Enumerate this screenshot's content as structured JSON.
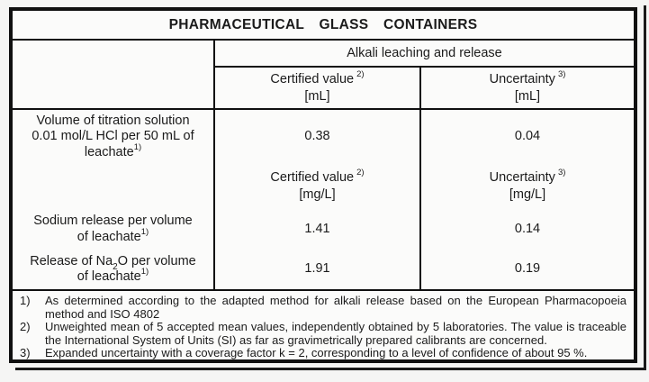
{
  "title": "PHARMACEUTICAL GLASS CONTAINERS",
  "group_header": "Alkali leaching and release",
  "headers_ml": {
    "certified_label": "Certified value",
    "certified_ref": "2)",
    "certified_unit": "[mL]",
    "uncertainty_label": "Uncertainty",
    "uncertainty_ref": "3)",
    "uncertainty_unit": "[mL]"
  },
  "headers_mgl": {
    "certified_label": "Certified value",
    "certified_ref": "2)",
    "certified_unit": "[mg/L]",
    "uncertainty_label": "Uncertainty",
    "uncertainty_ref": "3)",
    "uncertainty_unit": "[mg/L]"
  },
  "rows": {
    "titration": {
      "line1": "Volume of titration solution",
      "line2": "0.01 mol/L HCl per 50 mL of",
      "line3": "leachate",
      "ref": "1)",
      "certified": "0.38",
      "uncertainty": "0.04"
    },
    "sodium": {
      "line1": "Sodium release per volume",
      "line2": "of leachate",
      "ref": "1)",
      "certified": "1.41",
      "uncertainty": "0.14"
    },
    "na2o": {
      "line1_pre": "Release of Na",
      "line1_sub": "2",
      "line1_post": "O per volume",
      "line2": "of leachate",
      "ref": "1)",
      "certified": "1.91",
      "uncertainty": "0.19"
    }
  },
  "footnotes": [
    {
      "num": "1)",
      "text": "As determined according to the adapted method for alkali release based on the European Pharmacopoeia method and ISO 4802"
    },
    {
      "num": "2)",
      "text": "Unweighted mean of 5 accepted mean values, independently obtained by 5 laboratories. The value is traceable the International System of Units (SI) as far as gravimetrically prepared calibrants are concerned."
    },
    {
      "num": "3)",
      "text": "Expanded uncertainty with a coverage factor k = 2, corresponding to a level of confidence of about 95 %."
    }
  ]
}
